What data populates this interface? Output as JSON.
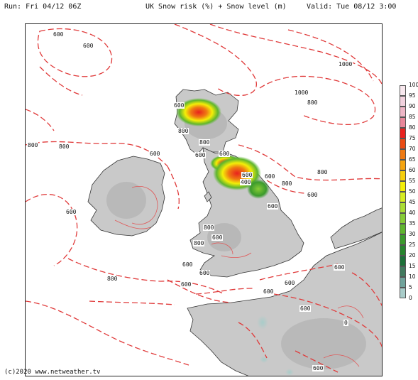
{
  "header": {
    "run": "Run: Fri 04/12 06Z",
    "title": "UK Snow risk (%) + Snow level (m)",
    "valid": "Valid: Tue 08/12 3:00"
  },
  "footer": {
    "copyright": "(c)2020 www.netweather.tv"
  },
  "contour_labels": [
    "600",
    "600",
    "1000",
    "1000",
    "800",
    "600",
    "800",
    "800",
    "800",
    "600",
    "600",
    "600",
    "800",
    "600",
    "400",
    "600",
    "800",
    "1000",
    "800",
    "600",
    "600",
    "800",
    "600",
    "800",
    "600",
    "600",
    "600",
    "800",
    "600",
    "600",
    "600",
    "0",
    "600",
    "600",
    "600"
  ],
  "legend": {
    "values": [
      "100",
      "95",
      "90",
      "85",
      "80",
      "75",
      "70",
      "65",
      "60",
      "55",
      "50",
      "45",
      "40",
      "35",
      "30",
      "25",
      "20",
      "15",
      "10",
      "5",
      "0"
    ],
    "colors": [
      "#f8e8ee",
      "#f2d2de",
      "#eeb6c6",
      "#e9879a",
      "#e8221e",
      "#ea4b14",
      "#ef7a12",
      "#f4a410",
      "#f7cf0c",
      "#f4ee08",
      "#d6ec22",
      "#aadd34",
      "#86cc36",
      "#5fb52e",
      "#3b9a2c",
      "#27852e",
      "#1c7038",
      "#417a5e",
      "#6fa39b",
      "#a8ccc9",
      "#d4e8e8"
    ]
  },
  "colors": {
    "snow_level_contour": "#e03a3a",
    "land": "#c9c9c9",
    "sea": "#ffffff"
  }
}
